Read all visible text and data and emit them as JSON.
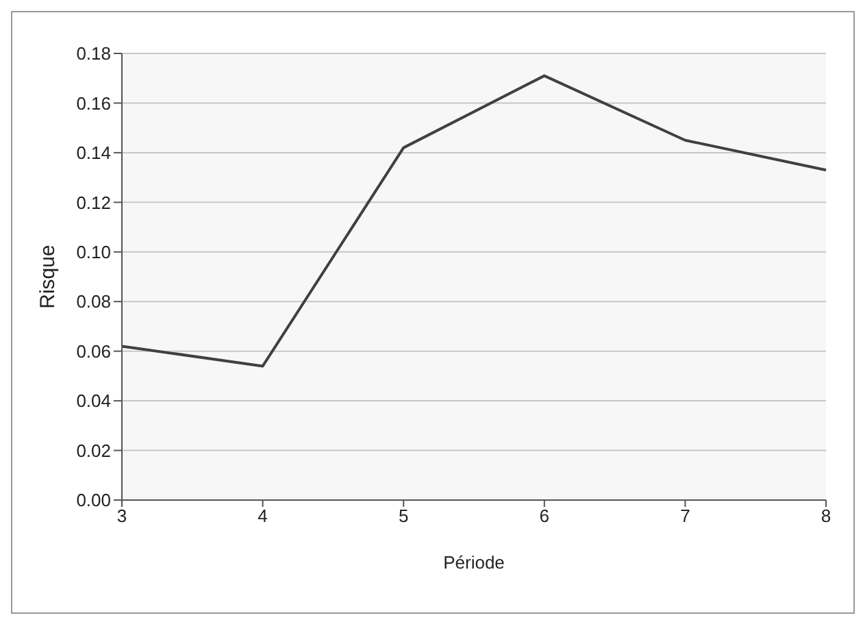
{
  "chart_data": {
    "type": "line",
    "xlabel": "Période",
    "ylabel": "Risque",
    "categories": [
      "3",
      "4",
      "5",
      "6",
      "7",
      "8"
    ],
    "series": [
      {
        "color": "#404040",
        "values": [
          0.062,
          0.054,
          0.142,
          0.171,
          0.145,
          0.133
        ]
      }
    ],
    "ylim": [
      0,
      0.18
    ],
    "yticks": [
      {
        "value": 0,
        "label": "0.00"
      },
      {
        "value": 0.02,
        "label": "0.02"
      },
      {
        "value": 0.04,
        "label": "0.04"
      },
      {
        "value": 0.06,
        "label": "0.06"
      },
      {
        "value": 0.08,
        "label": "0.08"
      },
      {
        "value": 0.1,
        "label": "0.10"
      },
      {
        "value": 0.12,
        "label": "0.12"
      },
      {
        "value": 0.14,
        "label": "0.14"
      },
      {
        "value": 0.16,
        "label": "0.16"
      },
      {
        "value": 0.18,
        "label": "0.18"
      }
    ],
    "grid": "y",
    "marker": "none",
    "line_style": "solid",
    "legend": false
  }
}
